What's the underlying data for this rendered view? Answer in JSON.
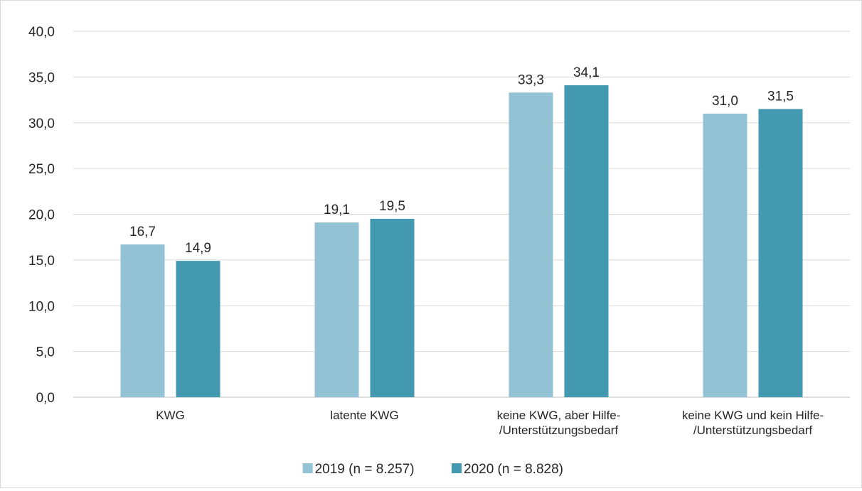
{
  "chart_data": {
    "type": "bar",
    "categories": [
      [
        "KWG"
      ],
      [
        "latente KWG"
      ],
      [
        "keine KWG, aber Hilfe-",
        "/Unterstützungsbedarf"
      ],
      [
        "keine KWG und kein Hilfe-",
        "/Unterstützungsbedarf"
      ]
    ],
    "series": [
      {
        "name": "2019 (n = 8.257)",
        "color": "#93c2d4",
        "values": [
          16.7,
          19.1,
          33.3,
          31.0
        ]
      },
      {
        "name": "2020 (n = 8.828)",
        "color": "#4299b0",
        "values": [
          14.9,
          19.5,
          34.1,
          31.5
        ]
      }
    ],
    "ylim": [
      0,
      40
    ],
    "yticks": [
      0,
      5,
      10,
      15,
      20,
      25,
      30,
      35,
      40
    ],
    "number_format": "de-DE, 1 decimal",
    "grid": true,
    "gridline_color": "#d9d9d9",
    "legend_position": "bottom",
    "title": "",
    "xlabel": "",
    "ylabel": ""
  }
}
